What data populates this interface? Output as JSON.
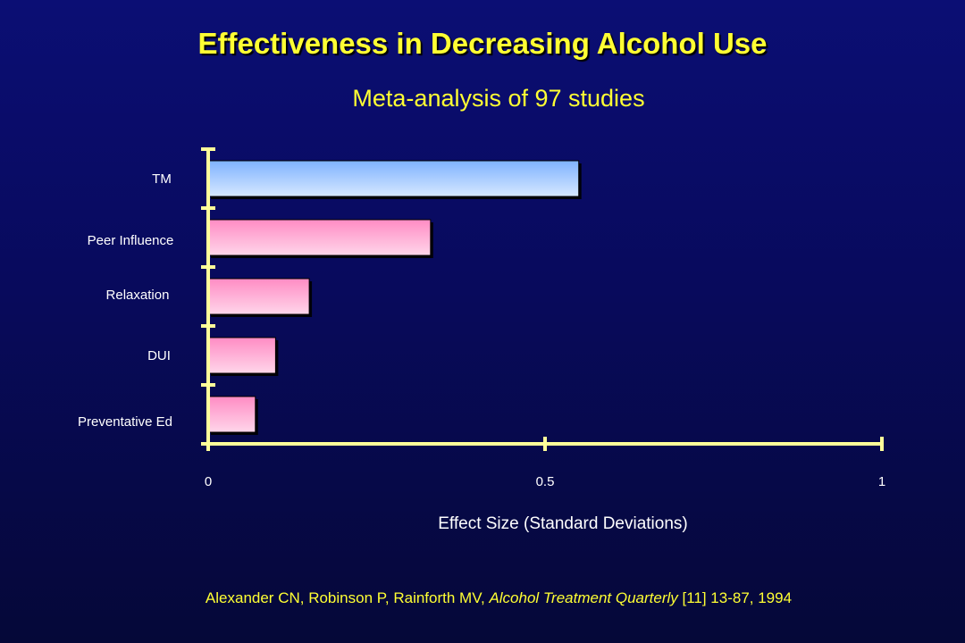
{
  "slide": {
    "title": "Effectiveness in Decreasing Alcohol Use",
    "subtitle": "Meta-analysis of 97 studies",
    "citation": {
      "authors": "Alexander CN, Robinson P, Rainforth MV, ",
      "journal": "Alcohol Treatment Quarterly",
      "details": " [11] 13-87, 1994"
    }
  },
  "colors": {
    "title": "#ffff33",
    "axis": "#ffff99",
    "highlight_bar": "#9fc9ff",
    "other_bars": "#ff9fcf",
    "background": "#0b0e74"
  },
  "chart_data": {
    "type": "bar",
    "orientation": "horizontal",
    "title": "Effectiveness in Decreasing Alcohol Use",
    "subtitle": "Meta-analysis of 97 studies",
    "xlabel": "Effect Size (Standard Deviations)",
    "ylabel": "",
    "xlim": [
      0,
      1
    ],
    "xticks": [
      "0",
      "0.5",
      "1"
    ],
    "categories": [
      "TM",
      "Peer Influence",
      "Relaxation",
      "DUI",
      "Preventative Ed"
    ],
    "values": [
      0.55,
      0.33,
      0.15,
      0.1,
      0.07
    ],
    "highlight": "TM",
    "grid": false,
    "legend": "none"
  }
}
